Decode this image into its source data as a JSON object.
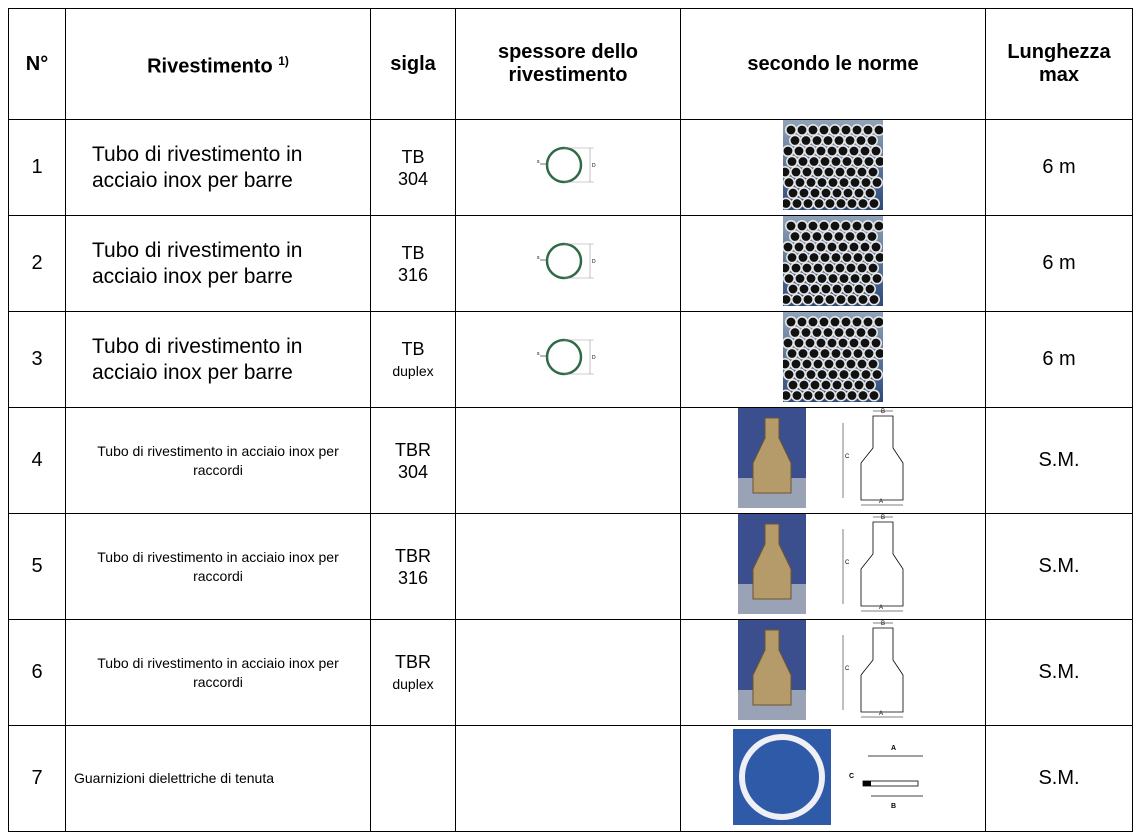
{
  "header": {
    "cells": [
      "N°",
      "Rivestimento",
      "sigla",
      "spessore dello rivestimento",
      "secondo le norme",
      "Lunghezza max"
    ],
    "footnote_mark": "1)"
  },
  "rows": [
    {
      "no": "1",
      "description": "Tubo di rivestimento in acciaio inox  per barre",
      "sigla": [
        "TB",
        "304"
      ],
      "length": "6 m"
    },
    {
      "no": "2",
      "description": "Tubo di rivestimento in acciaio inox  per barre",
      "sigla": [
        "TB",
        "316"
      ],
      "length": "6 m"
    },
    {
      "no": "3",
      "description": "Tubo di rivestimento in acciaio inox per barre",
      "sigla": [
        "TB",
        "duplex"
      ],
      "length": "6 m"
    },
    {
      "no": "4",
      "description": "Tubo di rivestimento in acciaio inox per raccordi",
      "sigla": [
        "TBR",
        "304"
      ],
      "length": "S.M."
    },
    {
      "no": "5",
      "description": "Tubo di rivestimento in acciaio inox per raccordi",
      "sigla": [
        "TBR",
        "316"
      ],
      "length": "S.M."
    },
    {
      "no": "6",
      "description": "Tubo di rivestimento in acciaio inox per raccordi",
      "sigla": [
        "TBR",
        "duplex"
      ],
      "length": "S.M."
    },
    {
      "no": "7",
      "description": "Guarnizioni dielettriche di tenuta",
      "sigla": [],
      "length": "S.M."
    }
  ],
  "figure_labels": {
    "thickness": [
      "s",
      "D"
    ],
    "reducer": [
      "B",
      "C",
      "A"
    ],
    "gasket": [
      "A",
      "C",
      "B"
    ]
  }
}
